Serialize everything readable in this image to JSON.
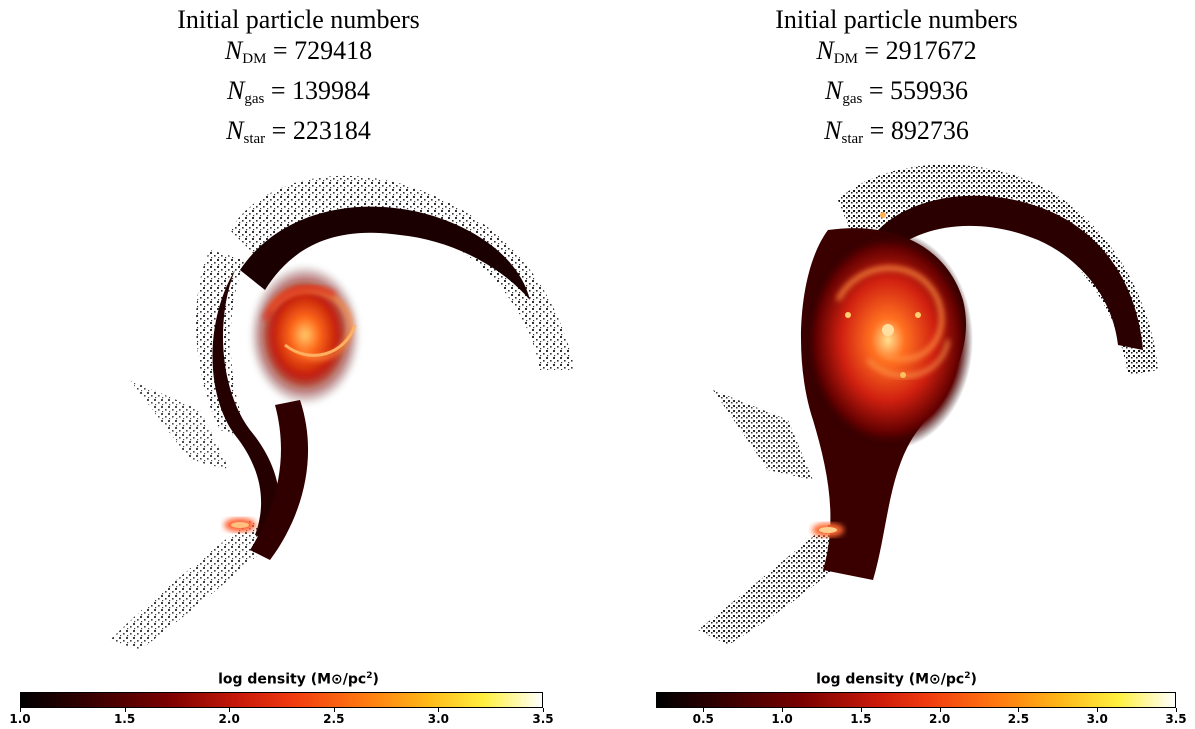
{
  "panels": [
    {
      "title": "Initial particle numbers",
      "counts": [
        {
          "symbol": "N",
          "subscript": "DM",
          "value": "729418"
        },
        {
          "symbol": "N",
          "subscript": "gas",
          "value": "139984"
        },
        {
          "symbol": "N",
          "subscript": "star",
          "value": "223184"
        }
      ],
      "colorbar": {
        "label_prefix": "log density (M",
        "label_sun": "⊙",
        "label_unit": "/pc",
        "label_exp": "2",
        "label_suffix": ")",
        "range": [
          1.0,
          3.5
        ],
        "ticks": [
          "1.0",
          "1.5",
          "2.0",
          "2.5",
          "3.0",
          "3.5"
        ]
      }
    },
    {
      "title": "Initial particle numbers",
      "counts": [
        {
          "symbol": "N",
          "subscript": "DM",
          "value": "2917672"
        },
        {
          "symbol": "N",
          "subscript": "gas",
          "value": "559936"
        },
        {
          "symbol": "N",
          "subscript": "star",
          "value": "892736"
        }
      ],
      "colorbar": {
        "label_prefix": "log density (M",
        "label_sun": "⊙",
        "label_unit": "/pc",
        "label_exp": "2",
        "label_suffix": ")",
        "range": [
          0.2,
          3.5
        ],
        "ticks": [
          "0.5",
          "1.0",
          "1.5",
          "2.0",
          "2.5",
          "3.0",
          "3.5"
        ]
      }
    }
  ],
  "colormap": {
    "low": "#000000",
    "mid": "#e0200a",
    "high": "#ffffff"
  }
}
